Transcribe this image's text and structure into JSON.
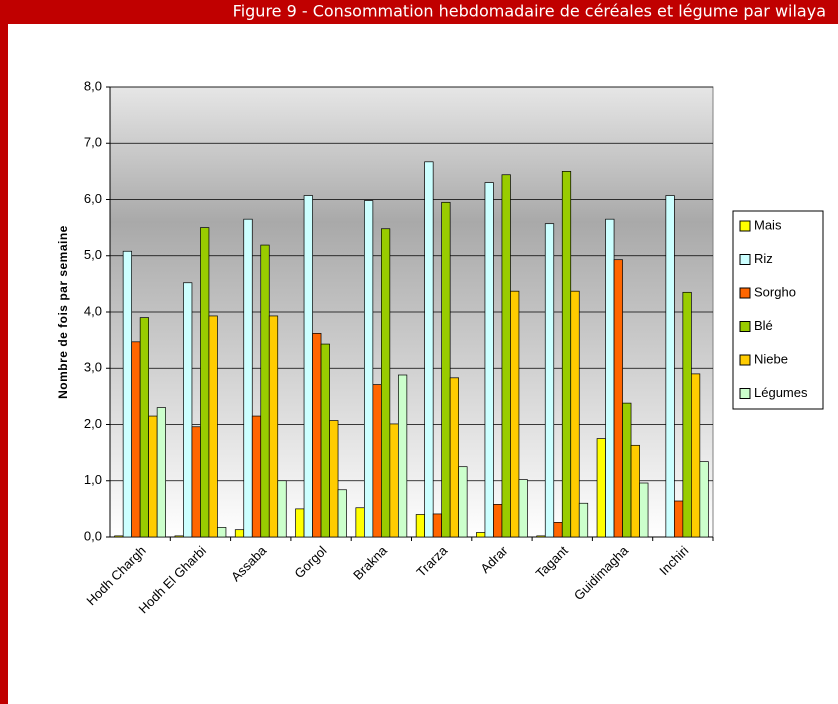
{
  "chart_data": {
    "type": "bar",
    "title": "Figure 9 - Consommation hebdomadaire de céréales et légume par wilaya",
    "y_label": "Nombre de fois par semaine",
    "categories": [
      "Hodh Chargh",
      "Hodh El Gharbi",
      "Assaba",
      "Gorgol",
      "Brakna",
      "Trarza",
      "Adrar",
      "Tagant",
      "Guidimagha",
      "Inchiri"
    ],
    "series": [
      {
        "name": "Mais",
        "color": "#ffff00",
        "values": [
          0.02,
          0.02,
          0.13,
          0.5,
          0.52,
          0.4,
          0.08,
          0.02,
          1.75,
          0
        ]
      },
      {
        "name": "Riz",
        "color": "#ccffff",
        "values": [
          5.08,
          4.52,
          5.65,
          6.07,
          5.98,
          6.67,
          6.3,
          5.57,
          5.65,
          6.07
        ]
      },
      {
        "name": "Sorgho",
        "color": "#ff6600",
        "values": [
          3.47,
          1.96,
          2.15,
          3.62,
          2.71,
          0.41,
          0.58,
          0.26,
          4.93,
          0.64
        ]
      },
      {
        "name": "Blé",
        "color": "#99cc00",
        "values": [
          3.9,
          5.5,
          5.19,
          3.43,
          5.48,
          5.95,
          6.44,
          6.5,
          2.38,
          4.35
        ]
      },
      {
        "name": "Niebe",
        "color": "#ffcc00",
        "values": [
          2.15,
          3.93,
          3.93,
          2.07,
          2.01,
          2.83,
          4.37,
          4.37,
          1.63,
          2.9
        ]
      },
      {
        "name": "Légumes",
        "color": "#ccffcc",
        "values": [
          2.3,
          0.17,
          1.0,
          0.84,
          2.88,
          1.25,
          1.02,
          0.6,
          0.96,
          1.34
        ]
      }
    ],
    "ylim": [
      0,
      8
    ],
    "yticks": [
      {
        "value": 0,
        "label": "0,0"
      },
      {
        "value": 1,
        "label": "1,0"
      },
      {
        "value": 2,
        "label": "2,0"
      },
      {
        "value": 3,
        "label": "3,0"
      },
      {
        "value": 4,
        "label": "4,0"
      },
      {
        "value": 5,
        "label": "5,0"
      },
      {
        "value": 6,
        "label": "6,0"
      },
      {
        "value": 7,
        "label": "7,0"
      },
      {
        "value": 8,
        "label": "8,0"
      }
    ],
    "grid": true,
    "legend": "right"
  }
}
